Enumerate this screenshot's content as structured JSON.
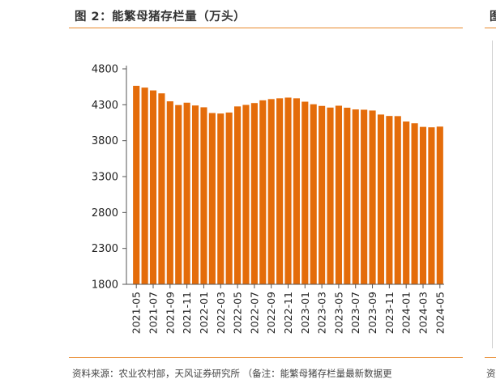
{
  "figure": {
    "title": "图 2：能繁母猪存栏量（万头）",
    "next_title_fragment": "图",
    "source": "资料来源：农业农村部，天风证券研究所 （备注：能繁母猪存栏量最新数据更",
    "next_source_fragment": "资"
  },
  "chart_data": {
    "type": "bar",
    "title": "能繁母猪存栏量（万头）",
    "xlabel": "",
    "ylabel": "",
    "ylim": [
      1800,
      4800
    ],
    "yticks": [
      "1800",
      "2300",
      "2800",
      "3300",
      "3800",
      "4300",
      "4800"
    ],
    "grid": false,
    "legend": "none",
    "color": "#e46c0a",
    "categories": [
      "2021-05",
      "2021-06",
      "2021-07",
      "2021-08",
      "2021-09",
      "2021-10",
      "2021-11",
      "2021-12",
      "2022-01",
      "2022-02",
      "2022-03",
      "2022-04",
      "2022-05",
      "2022-06",
      "2022-07",
      "2022-08",
      "2022-09",
      "2022-10",
      "2022-11",
      "2022-12",
      "2023-01",
      "2023-02",
      "2023-03",
      "2023-04",
      "2023-05",
      "2023-06",
      "2023-07",
      "2023-08",
      "2023-09",
      "2023-10",
      "2023-11",
      "2023-12",
      "2024-01",
      "2024-02",
      "2024-03",
      "2024-04",
      "2024-05"
    ],
    "xtick_labels": [
      "2021-05",
      "2021-07",
      "2021-09",
      "2021-11",
      "2022-01",
      "2022-03",
      "2022-05",
      "2022-07",
      "2022-09",
      "2022-11",
      "2023-01",
      "2023-03",
      "2023-05",
      "2023-07",
      "2023-09",
      "2023-11",
      "2024-01",
      "2024-03",
      "2024-05"
    ],
    "values": [
      4564,
      4539,
      4500,
      4459,
      4348,
      4296,
      4329,
      4290,
      4265,
      4185,
      4178,
      4192,
      4277,
      4298,
      4324,
      4362,
      4379,
      4390,
      4400,
      4390,
      4343,
      4307,
      4284,
      4261,
      4287,
      4259,
      4235,
      4231,
      4220,
      4164,
      4144,
      4142,
      4067,
      4042,
      3992,
      3986,
      3996
    ]
  }
}
